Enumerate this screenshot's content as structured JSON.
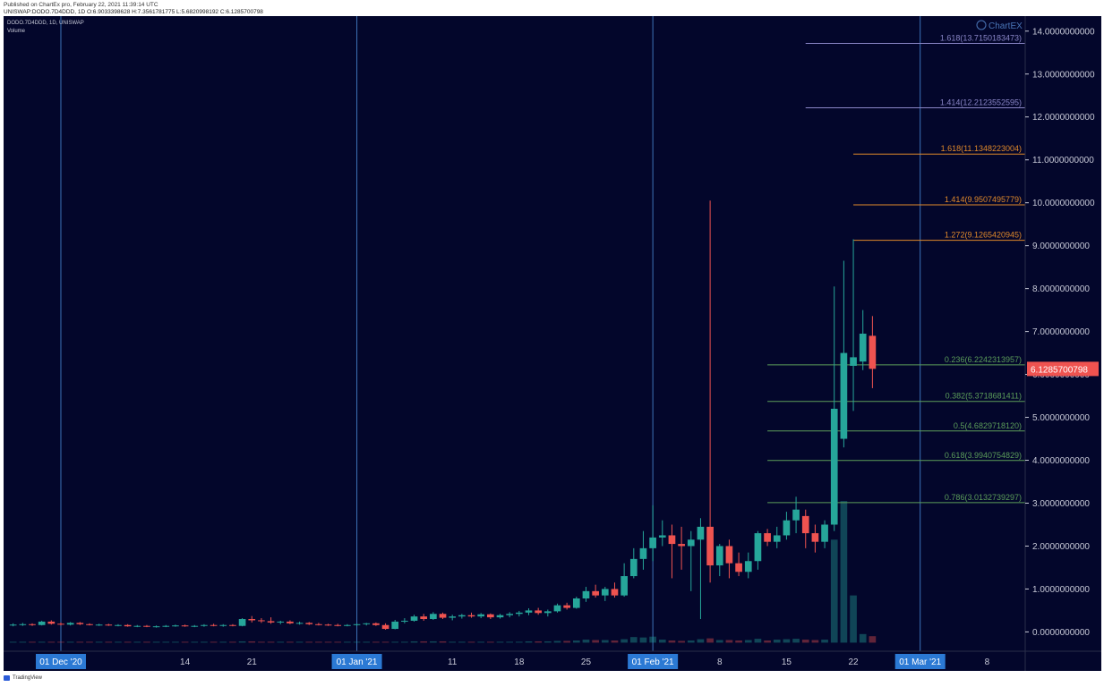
{
  "header": {
    "published": "Published on ChartEx pro, February 22, 2021 11:39:14 UTC",
    "symbol_line": "UNISWAP:DODO.7D4DDD, 1D O:6.9033398628 H:7.3561781775 L:5.6820998192 C:6.1285700798"
  },
  "legend": {
    "title": "DODO.7D4DDD, 1D, UNISWAP",
    "volume": "Volume"
  },
  "watermark": "ChartEX",
  "footer": {
    "brand": "TradingView"
  },
  "colors": {
    "background": "#03062b",
    "up": "#26a69a",
    "down": "#ef5350",
    "fib_green": "#5c9e5a",
    "fib_orange": "#e0892b",
    "fib_purple": "#8a86c7",
    "vline": "#3d72b8",
    "axis_text": "#c8cad8",
    "label_bg": "#2b79d4",
    "price_tag": "#ef5350"
  },
  "chart_data": {
    "type": "candlestick",
    "x": {
      "start_date": "2020-11-25",
      "end_date": "2021-03-12",
      "unit": "day"
    },
    "ylim": [
      -0.45,
      14.35
    ],
    "y_ticks": [
      {
        "value": 14,
        "label": "14.0000000000"
      },
      {
        "value": 13,
        "label": "13.0000000000"
      },
      {
        "value": 12,
        "label": "12.0000000000"
      },
      {
        "value": 11,
        "label": "11.0000000000"
      },
      {
        "value": 10,
        "label": "10.0000000000"
      },
      {
        "value": 9,
        "label": "9.0000000000"
      },
      {
        "value": 8,
        "label": "8.0000000000"
      },
      {
        "value": 7,
        "label": "7.0000000000"
      },
      {
        "value": 6,
        "label": "6.0000000000"
      },
      {
        "value": 5,
        "label": "5.0000000000"
      },
      {
        "value": 4,
        "label": "4.0000000000"
      },
      {
        "value": 3,
        "label": "3.0000000000"
      },
      {
        "value": 2,
        "label": "2.0000000000"
      },
      {
        "value": 1,
        "label": "1.0000000000"
      },
      {
        "value": 0,
        "label": "0.0000000000"
      }
    ],
    "x_ticks": [
      {
        "date": "2020-12-01",
        "label": "01 Dec '20",
        "boxed": true
      },
      {
        "date": "2020-12-14",
        "label": "14",
        "boxed": false
      },
      {
        "date": "2020-12-21",
        "label": "21",
        "boxed": false
      },
      {
        "date": "2021-01-01",
        "label": "01 Jan '21",
        "boxed": true
      },
      {
        "date": "2021-01-11",
        "label": "11",
        "boxed": false
      },
      {
        "date": "2021-01-18",
        "label": "18",
        "boxed": false
      },
      {
        "date": "2021-01-25",
        "label": "25",
        "boxed": false
      },
      {
        "date": "2021-02-01",
        "label": "01 Feb '21",
        "boxed": true
      },
      {
        "date": "2021-02-08",
        "label": "8",
        "boxed": false
      },
      {
        "date": "2021-02-15",
        "label": "15",
        "boxed": false
      },
      {
        "date": "2021-02-22",
        "label": "22",
        "boxed": false
      },
      {
        "date": "2021-03-01",
        "label": "01 Mar '21",
        "boxed": true
      },
      {
        "date": "2021-03-08",
        "label": "8",
        "boxed": false
      }
    ],
    "vertical_lines": [
      "2020-12-01",
      "2021-01-01",
      "2021-02-01",
      "2021-03-01"
    ],
    "last_price": {
      "value": 6.1285700798,
      "label": "6.1285700798"
    },
    "volume_scale_max": 3.3,
    "candles": [
      {
        "date": "2020-11-26",
        "o": 0.16,
        "h": 0.2,
        "l": 0.13,
        "c": 0.17,
        "v": 0.02
      },
      {
        "date": "2020-11-27",
        "o": 0.17,
        "h": 0.21,
        "l": 0.14,
        "c": 0.18,
        "v": 0.02
      },
      {
        "date": "2020-11-28",
        "o": 0.18,
        "h": 0.2,
        "l": 0.14,
        "c": 0.16,
        "v": 0.01
      },
      {
        "date": "2020-11-29",
        "o": 0.16,
        "h": 0.26,
        "l": 0.15,
        "c": 0.24,
        "v": 0.02
      },
      {
        "date": "2020-11-30",
        "o": 0.24,
        "h": 0.27,
        "l": 0.17,
        "c": 0.19,
        "v": 0.02
      },
      {
        "date": "2020-12-01",
        "o": 0.19,
        "h": 0.22,
        "l": 0.15,
        "c": 0.17,
        "v": 0.01
      },
      {
        "date": "2020-12-02",
        "o": 0.17,
        "h": 0.23,
        "l": 0.15,
        "c": 0.21,
        "v": 0.01
      },
      {
        "date": "2020-12-03",
        "o": 0.21,
        "h": 0.23,
        "l": 0.16,
        "c": 0.18,
        "v": 0.01
      },
      {
        "date": "2020-12-04",
        "o": 0.18,
        "h": 0.2,
        "l": 0.15,
        "c": 0.16,
        "v": 0.01
      },
      {
        "date": "2020-12-05",
        "o": 0.16,
        "h": 0.19,
        "l": 0.14,
        "c": 0.17,
        "v": 0.01
      },
      {
        "date": "2020-12-06",
        "o": 0.17,
        "h": 0.19,
        "l": 0.14,
        "c": 0.15,
        "v": 0.01
      },
      {
        "date": "2020-12-07",
        "o": 0.15,
        "h": 0.18,
        "l": 0.13,
        "c": 0.16,
        "v": 0.01
      },
      {
        "date": "2020-12-08",
        "o": 0.16,
        "h": 0.18,
        "l": 0.12,
        "c": 0.13,
        "v": 0.01
      },
      {
        "date": "2020-12-09",
        "o": 0.13,
        "h": 0.16,
        "l": 0.11,
        "c": 0.14,
        "v": 0.01
      },
      {
        "date": "2020-12-10",
        "o": 0.14,
        "h": 0.16,
        "l": 0.11,
        "c": 0.12,
        "v": 0.01
      },
      {
        "date": "2020-12-11",
        "o": 0.12,
        "h": 0.15,
        "l": 0.1,
        "c": 0.13,
        "v": 0.01
      },
      {
        "date": "2020-12-12",
        "o": 0.13,
        "h": 0.16,
        "l": 0.11,
        "c": 0.14,
        "v": 0.01
      },
      {
        "date": "2020-12-13",
        "o": 0.14,
        "h": 0.17,
        "l": 0.12,
        "c": 0.15,
        "v": 0.01
      },
      {
        "date": "2020-12-14",
        "o": 0.15,
        "h": 0.17,
        "l": 0.12,
        "c": 0.13,
        "v": 0.01
      },
      {
        "date": "2020-12-15",
        "o": 0.13,
        "h": 0.16,
        "l": 0.11,
        "c": 0.14,
        "v": 0.01
      },
      {
        "date": "2020-12-16",
        "o": 0.14,
        "h": 0.18,
        "l": 0.12,
        "c": 0.16,
        "v": 0.01
      },
      {
        "date": "2020-12-17",
        "o": 0.16,
        "h": 0.19,
        "l": 0.13,
        "c": 0.15,
        "v": 0.01
      },
      {
        "date": "2020-12-18",
        "o": 0.15,
        "h": 0.18,
        "l": 0.12,
        "c": 0.16,
        "v": 0.01
      },
      {
        "date": "2020-12-19",
        "o": 0.16,
        "h": 0.18,
        "l": 0.13,
        "c": 0.14,
        "v": 0.01
      },
      {
        "date": "2020-12-20",
        "o": 0.14,
        "h": 0.32,
        "l": 0.13,
        "c": 0.3,
        "v": 0.03
      },
      {
        "date": "2020-12-21",
        "o": 0.3,
        "h": 0.37,
        "l": 0.22,
        "c": 0.27,
        "v": 0.03
      },
      {
        "date": "2020-12-22",
        "o": 0.27,
        "h": 0.32,
        "l": 0.21,
        "c": 0.25,
        "v": 0.02
      },
      {
        "date": "2020-12-23",
        "o": 0.25,
        "h": 0.34,
        "l": 0.19,
        "c": 0.22,
        "v": 0.02
      },
      {
        "date": "2020-12-24",
        "o": 0.22,
        "h": 0.26,
        "l": 0.18,
        "c": 0.24,
        "v": 0.01
      },
      {
        "date": "2020-12-25",
        "o": 0.24,
        "h": 0.27,
        "l": 0.18,
        "c": 0.2,
        "v": 0.01
      },
      {
        "date": "2020-12-26",
        "o": 0.2,
        "h": 0.24,
        "l": 0.17,
        "c": 0.21,
        "v": 0.01
      },
      {
        "date": "2020-12-27",
        "o": 0.21,
        "h": 0.23,
        "l": 0.16,
        "c": 0.18,
        "v": 0.01
      },
      {
        "date": "2020-12-28",
        "o": 0.18,
        "h": 0.21,
        "l": 0.15,
        "c": 0.17,
        "v": 0.01
      },
      {
        "date": "2020-12-29",
        "o": 0.17,
        "h": 0.19,
        "l": 0.14,
        "c": 0.16,
        "v": 0.01
      },
      {
        "date": "2020-12-30",
        "o": 0.16,
        "h": 0.19,
        "l": 0.13,
        "c": 0.15,
        "v": 0.01
      },
      {
        "date": "2020-12-31",
        "o": 0.15,
        "h": 0.18,
        "l": 0.13,
        "c": 0.16,
        "v": 0.01
      },
      {
        "date": "2021-01-01",
        "o": 0.16,
        "h": 0.19,
        "l": 0.14,
        "c": 0.18,
        "v": 0.01
      },
      {
        "date": "2021-01-02",
        "o": 0.18,
        "h": 0.21,
        "l": 0.15,
        "c": 0.2,
        "v": 0.01
      },
      {
        "date": "2021-01-03",
        "o": 0.2,
        "h": 0.22,
        "l": 0.14,
        "c": 0.16,
        "v": 0.02
      },
      {
        "date": "2021-01-04",
        "o": 0.16,
        "h": 0.2,
        "l": 0.05,
        "c": 0.07,
        "v": 0.02
      },
      {
        "date": "2021-01-05",
        "o": 0.07,
        "h": 0.28,
        "l": 0.06,
        "c": 0.24,
        "v": 0.02
      },
      {
        "date": "2021-01-06",
        "o": 0.24,
        "h": 0.32,
        "l": 0.2,
        "c": 0.26,
        "v": 0.02
      },
      {
        "date": "2021-01-07",
        "o": 0.26,
        "h": 0.4,
        "l": 0.24,
        "c": 0.36,
        "v": 0.03
      },
      {
        "date": "2021-01-08",
        "o": 0.36,
        "h": 0.42,
        "l": 0.26,
        "c": 0.3,
        "v": 0.03
      },
      {
        "date": "2021-01-09",
        "o": 0.3,
        "h": 0.46,
        "l": 0.28,
        "c": 0.42,
        "v": 0.03
      },
      {
        "date": "2021-01-10",
        "o": 0.42,
        "h": 0.45,
        "l": 0.3,
        "c": 0.33,
        "v": 0.03
      },
      {
        "date": "2021-01-11",
        "o": 0.33,
        "h": 0.4,
        "l": 0.27,
        "c": 0.36,
        "v": 0.02
      },
      {
        "date": "2021-01-12",
        "o": 0.36,
        "h": 0.42,
        "l": 0.31,
        "c": 0.39,
        "v": 0.02
      },
      {
        "date": "2021-01-13",
        "o": 0.39,
        "h": 0.45,
        "l": 0.33,
        "c": 0.36,
        "v": 0.02
      },
      {
        "date": "2021-01-14",
        "o": 0.36,
        "h": 0.44,
        "l": 0.32,
        "c": 0.41,
        "v": 0.02
      },
      {
        "date": "2021-01-15",
        "o": 0.41,
        "h": 0.43,
        "l": 0.3,
        "c": 0.34,
        "v": 0.02
      },
      {
        "date": "2021-01-16",
        "o": 0.34,
        "h": 0.42,
        "l": 0.31,
        "c": 0.39,
        "v": 0.02
      },
      {
        "date": "2021-01-17",
        "o": 0.39,
        "h": 0.46,
        "l": 0.34,
        "c": 0.42,
        "v": 0.02
      },
      {
        "date": "2021-01-18",
        "o": 0.42,
        "h": 0.49,
        "l": 0.36,
        "c": 0.45,
        "v": 0.02
      },
      {
        "date": "2021-01-19",
        "o": 0.45,
        "h": 0.55,
        "l": 0.39,
        "c": 0.5,
        "v": 0.03
      },
      {
        "date": "2021-01-20",
        "o": 0.5,
        "h": 0.56,
        "l": 0.4,
        "c": 0.44,
        "v": 0.03
      },
      {
        "date": "2021-01-21",
        "o": 0.44,
        "h": 0.52,
        "l": 0.36,
        "c": 0.48,
        "v": 0.03
      },
      {
        "date": "2021-01-22",
        "o": 0.48,
        "h": 0.66,
        "l": 0.45,
        "c": 0.62,
        "v": 0.04
      },
      {
        "date": "2021-01-23",
        "o": 0.62,
        "h": 0.68,
        "l": 0.52,
        "c": 0.56,
        "v": 0.04
      },
      {
        "date": "2021-01-24",
        "o": 0.56,
        "h": 0.82,
        "l": 0.54,
        "c": 0.78,
        "v": 0.05
      },
      {
        "date": "2021-01-25",
        "o": 0.78,
        "h": 1.05,
        "l": 0.7,
        "c": 0.95,
        "v": 0.07
      },
      {
        "date": "2021-01-26",
        "o": 0.95,
        "h": 1.1,
        "l": 0.8,
        "c": 0.85,
        "v": 0.06
      },
      {
        "date": "2021-01-27",
        "o": 0.85,
        "h": 1.05,
        "l": 0.72,
        "c": 1.0,
        "v": 0.06
      },
      {
        "date": "2021-01-28",
        "o": 1.0,
        "h": 1.15,
        "l": 0.8,
        "c": 0.85,
        "v": 0.05
      },
      {
        "date": "2021-01-29",
        "o": 0.85,
        "h": 1.6,
        "l": 0.82,
        "c": 1.3,
        "v": 0.08
      },
      {
        "date": "2021-01-30",
        "o": 1.3,
        "h": 1.95,
        "l": 1.25,
        "c": 1.7,
        "v": 0.13
      },
      {
        "date": "2021-01-31",
        "o": 1.7,
        "h": 2.35,
        "l": 1.45,
        "c": 1.95,
        "v": 0.12
      },
      {
        "date": "2021-02-01",
        "o": 1.95,
        "h": 2.95,
        "l": 1.65,
        "c": 2.2,
        "v": 0.14
      },
      {
        "date": "2021-02-02",
        "o": 2.2,
        "h": 2.6,
        "l": 2.0,
        "c": 2.25,
        "v": 0.07
      },
      {
        "date": "2021-02-03",
        "o": 2.25,
        "h": 2.5,
        "l": 1.25,
        "c": 2.05,
        "v": 0.05
      },
      {
        "date": "2021-02-04",
        "o": 2.05,
        "h": 2.45,
        "l": 1.45,
        "c": 2.0,
        "v": 0.04
      },
      {
        "date": "2021-02-05",
        "o": 2.0,
        "h": 2.35,
        "l": 0.95,
        "c": 2.15,
        "v": 0.05
      },
      {
        "date": "2021-02-06",
        "o": 2.15,
        "h": 2.65,
        "l": 0.3,
        "c": 2.45,
        "v": 0.08
      },
      {
        "date": "2021-02-07",
        "o": 2.45,
        "h": 10.05,
        "l": 1.15,
        "c": 1.55,
        "v": 0.1
      },
      {
        "date": "2021-02-08",
        "o": 1.55,
        "h": 2.05,
        "l": 1.3,
        "c": 2.0,
        "v": 0.06
      },
      {
        "date": "2021-02-09",
        "o": 2.0,
        "h": 2.15,
        "l": 1.25,
        "c": 1.6,
        "v": 0.06
      },
      {
        "date": "2021-02-10",
        "o": 1.6,
        "h": 1.85,
        "l": 1.3,
        "c": 1.4,
        "v": 0.05
      },
      {
        "date": "2021-02-11",
        "o": 1.4,
        "h": 1.85,
        "l": 1.25,
        "c": 1.65,
        "v": 0.06
      },
      {
        "date": "2021-02-12",
        "o": 1.65,
        "h": 2.35,
        "l": 1.45,
        "c": 2.3,
        "v": 0.09
      },
      {
        "date": "2021-02-13",
        "o": 2.3,
        "h": 2.4,
        "l": 2.0,
        "c": 2.1,
        "v": 0.05
      },
      {
        "date": "2021-02-14",
        "o": 2.1,
        "h": 2.45,
        "l": 1.95,
        "c": 2.25,
        "v": 0.07
      },
      {
        "date": "2021-02-15",
        "o": 2.25,
        "h": 2.8,
        "l": 2.15,
        "c": 2.6,
        "v": 0.08
      },
      {
        "date": "2021-02-16",
        "o": 2.6,
        "h": 3.15,
        "l": 2.3,
        "c": 2.85,
        "v": 0.09
      },
      {
        "date": "2021-02-17",
        "o": 2.7,
        "h": 2.85,
        "l": 1.95,
        "c": 2.3,
        "v": 0.07
      },
      {
        "date": "2021-02-18",
        "o": 2.3,
        "h": 2.5,
        "l": 1.85,
        "c": 2.1,
        "v": 0.06
      },
      {
        "date": "2021-02-19",
        "o": 2.1,
        "h": 2.6,
        "l": 1.95,
        "c": 2.5,
        "v": 0.07
      },
      {
        "date": "2021-02-20",
        "o": 2.5,
        "h": 8.05,
        "l": 2.35,
        "c": 5.2,
        "v": 2.4
      },
      {
        "date": "2021-02-21",
        "o": 4.5,
        "h": 8.65,
        "l": 4.3,
        "c": 6.5,
        "v": 3.3
      },
      {
        "date": "2021-02-22",
        "o": 6.2,
        "h": 9.15,
        "l": 5.15,
        "c": 6.4,
        "v": 1.1
      },
      {
        "date": "2021-02-23",
        "o": 6.3,
        "h": 7.5,
        "l": 6.1,
        "c": 6.95,
        "v": 0.2
      },
      {
        "date": "2021-02-24",
        "o": 6.9,
        "h": 7.36,
        "l": 5.68,
        "c": 6.13,
        "v": 0.15
      }
    ],
    "fib_levels": [
      {
        "value": 13.7150183473,
        "label": "1.618(13.7150183473)",
        "color": "purple",
        "from": "2021-02-17"
      },
      {
        "value": 12.2123552595,
        "label": "1.414(12.2123552595)",
        "color": "purple",
        "from": "2021-02-17"
      },
      {
        "value": 11.1348223004,
        "label": "1.618(11.1348223004)",
        "color": "orange",
        "from": "2021-02-22"
      },
      {
        "value": 9.9507495779,
        "label": "1.414(9.9507495779)",
        "color": "orange",
        "from": "2021-02-22"
      },
      {
        "value": 9.1265420945,
        "label": "1.272(9.1265420945)",
        "color": "orange",
        "from": "2021-02-22"
      },
      {
        "value": 6.2242313957,
        "label": "0.236(6.2242313957)",
        "color": "green",
        "from": "2021-02-13"
      },
      {
        "value": 5.3718681411,
        "label": "0.382(5.3718681411)",
        "color": "green",
        "from": "2021-02-13"
      },
      {
        "value": 4.682971812,
        "label": "0.5(4.6829718120)",
        "color": "green",
        "from": "2021-02-13"
      },
      {
        "value": 3.9940754829,
        "label": "0.618(3.9940754829)",
        "color": "green",
        "from": "2021-02-13"
      },
      {
        "value": 3.0132739297,
        "label": "0.786(3.0132739297)",
        "color": "green",
        "from": "2021-02-13"
      }
    ]
  }
}
